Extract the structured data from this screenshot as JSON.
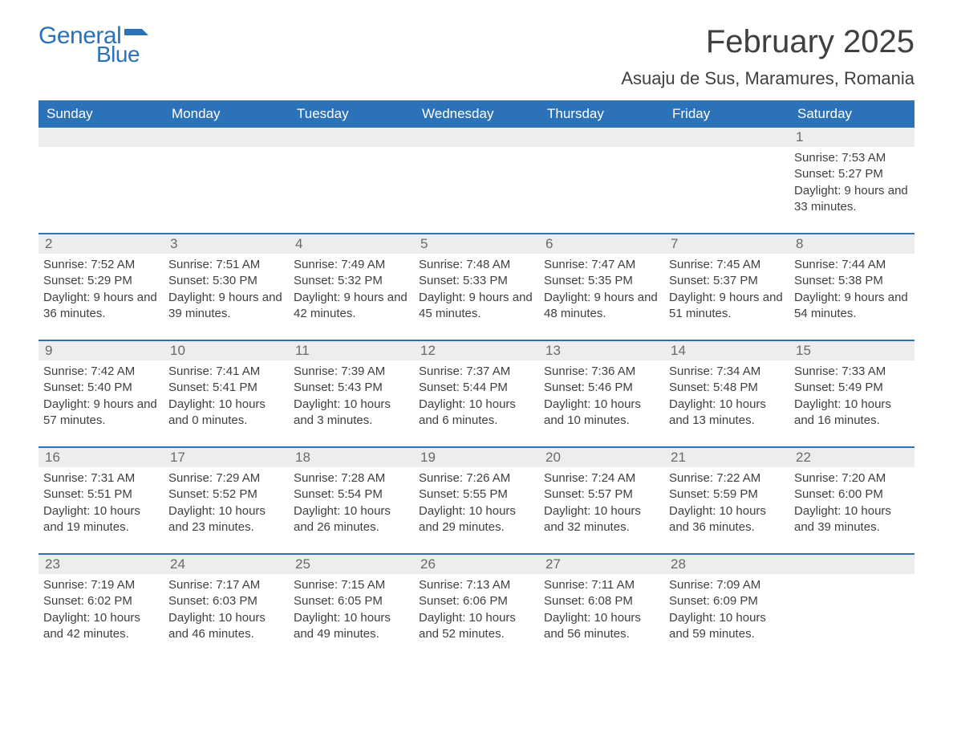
{
  "logo": {
    "general": "General",
    "blue": "Blue"
  },
  "title": "February 2025",
  "location": "Asuaju de Sus, Maramures, Romania",
  "colors": {
    "header_bg": "#2b72b9",
    "header_fg": "#ffffff",
    "daynum_bg": "#ededed",
    "daynum_fg": "#6a6a6a",
    "text": "#404040",
    "accent": "#2b72b9",
    "page_bg": "#ffffff"
  },
  "day_labels": [
    "Sunday",
    "Monday",
    "Tuesday",
    "Wednesday",
    "Thursday",
    "Friday",
    "Saturday"
  ],
  "weeks": [
    [
      {
        "day": "",
        "sunrise": "",
        "sunset": "",
        "daylight": ""
      },
      {
        "day": "",
        "sunrise": "",
        "sunset": "",
        "daylight": ""
      },
      {
        "day": "",
        "sunrise": "",
        "sunset": "",
        "daylight": ""
      },
      {
        "day": "",
        "sunrise": "",
        "sunset": "",
        "daylight": ""
      },
      {
        "day": "",
        "sunrise": "",
        "sunset": "",
        "daylight": ""
      },
      {
        "day": "",
        "sunrise": "",
        "sunset": "",
        "daylight": ""
      },
      {
        "day": "1",
        "sunrise": "Sunrise: 7:53 AM",
        "sunset": "Sunset: 5:27 PM",
        "daylight": "Daylight: 9 hours and 33 minutes."
      }
    ],
    [
      {
        "day": "2",
        "sunrise": "Sunrise: 7:52 AM",
        "sunset": "Sunset: 5:29 PM",
        "daylight": "Daylight: 9 hours and 36 minutes."
      },
      {
        "day": "3",
        "sunrise": "Sunrise: 7:51 AM",
        "sunset": "Sunset: 5:30 PM",
        "daylight": "Daylight: 9 hours and 39 minutes."
      },
      {
        "day": "4",
        "sunrise": "Sunrise: 7:49 AM",
        "sunset": "Sunset: 5:32 PM",
        "daylight": "Daylight: 9 hours and 42 minutes."
      },
      {
        "day": "5",
        "sunrise": "Sunrise: 7:48 AM",
        "sunset": "Sunset: 5:33 PM",
        "daylight": "Daylight: 9 hours and 45 minutes."
      },
      {
        "day": "6",
        "sunrise": "Sunrise: 7:47 AM",
        "sunset": "Sunset: 5:35 PM",
        "daylight": "Daylight: 9 hours and 48 minutes."
      },
      {
        "day": "7",
        "sunrise": "Sunrise: 7:45 AM",
        "sunset": "Sunset: 5:37 PM",
        "daylight": "Daylight: 9 hours and 51 minutes."
      },
      {
        "day": "8",
        "sunrise": "Sunrise: 7:44 AM",
        "sunset": "Sunset: 5:38 PM",
        "daylight": "Daylight: 9 hours and 54 minutes."
      }
    ],
    [
      {
        "day": "9",
        "sunrise": "Sunrise: 7:42 AM",
        "sunset": "Sunset: 5:40 PM",
        "daylight": "Daylight: 9 hours and 57 minutes."
      },
      {
        "day": "10",
        "sunrise": "Sunrise: 7:41 AM",
        "sunset": "Sunset: 5:41 PM",
        "daylight": "Daylight: 10 hours and 0 minutes."
      },
      {
        "day": "11",
        "sunrise": "Sunrise: 7:39 AM",
        "sunset": "Sunset: 5:43 PM",
        "daylight": "Daylight: 10 hours and 3 minutes."
      },
      {
        "day": "12",
        "sunrise": "Sunrise: 7:37 AM",
        "sunset": "Sunset: 5:44 PM",
        "daylight": "Daylight: 10 hours and 6 minutes."
      },
      {
        "day": "13",
        "sunrise": "Sunrise: 7:36 AM",
        "sunset": "Sunset: 5:46 PM",
        "daylight": "Daylight: 10 hours and 10 minutes."
      },
      {
        "day": "14",
        "sunrise": "Sunrise: 7:34 AM",
        "sunset": "Sunset: 5:48 PM",
        "daylight": "Daylight: 10 hours and 13 minutes."
      },
      {
        "day": "15",
        "sunrise": "Sunrise: 7:33 AM",
        "sunset": "Sunset: 5:49 PM",
        "daylight": "Daylight: 10 hours and 16 minutes."
      }
    ],
    [
      {
        "day": "16",
        "sunrise": "Sunrise: 7:31 AM",
        "sunset": "Sunset: 5:51 PM",
        "daylight": "Daylight: 10 hours and 19 minutes."
      },
      {
        "day": "17",
        "sunrise": "Sunrise: 7:29 AM",
        "sunset": "Sunset: 5:52 PM",
        "daylight": "Daylight: 10 hours and 23 minutes."
      },
      {
        "day": "18",
        "sunrise": "Sunrise: 7:28 AM",
        "sunset": "Sunset: 5:54 PM",
        "daylight": "Daylight: 10 hours and 26 minutes."
      },
      {
        "day": "19",
        "sunrise": "Sunrise: 7:26 AM",
        "sunset": "Sunset: 5:55 PM",
        "daylight": "Daylight: 10 hours and 29 minutes."
      },
      {
        "day": "20",
        "sunrise": "Sunrise: 7:24 AM",
        "sunset": "Sunset: 5:57 PM",
        "daylight": "Daylight: 10 hours and 32 minutes."
      },
      {
        "day": "21",
        "sunrise": "Sunrise: 7:22 AM",
        "sunset": "Sunset: 5:59 PM",
        "daylight": "Daylight: 10 hours and 36 minutes."
      },
      {
        "day": "22",
        "sunrise": "Sunrise: 7:20 AM",
        "sunset": "Sunset: 6:00 PM",
        "daylight": "Daylight: 10 hours and 39 minutes."
      }
    ],
    [
      {
        "day": "23",
        "sunrise": "Sunrise: 7:19 AM",
        "sunset": "Sunset: 6:02 PM",
        "daylight": "Daylight: 10 hours and 42 minutes."
      },
      {
        "day": "24",
        "sunrise": "Sunrise: 7:17 AM",
        "sunset": "Sunset: 6:03 PM",
        "daylight": "Daylight: 10 hours and 46 minutes."
      },
      {
        "day": "25",
        "sunrise": "Sunrise: 7:15 AM",
        "sunset": "Sunset: 6:05 PM",
        "daylight": "Daylight: 10 hours and 49 minutes."
      },
      {
        "day": "26",
        "sunrise": "Sunrise: 7:13 AM",
        "sunset": "Sunset: 6:06 PM",
        "daylight": "Daylight: 10 hours and 52 minutes."
      },
      {
        "day": "27",
        "sunrise": "Sunrise: 7:11 AM",
        "sunset": "Sunset: 6:08 PM",
        "daylight": "Daylight: 10 hours and 56 minutes."
      },
      {
        "day": "28",
        "sunrise": "Sunrise: 7:09 AM",
        "sunset": "Sunset: 6:09 PM",
        "daylight": "Daylight: 10 hours and 59 minutes."
      },
      {
        "day": "",
        "sunrise": "",
        "sunset": "",
        "daylight": ""
      }
    ]
  ]
}
